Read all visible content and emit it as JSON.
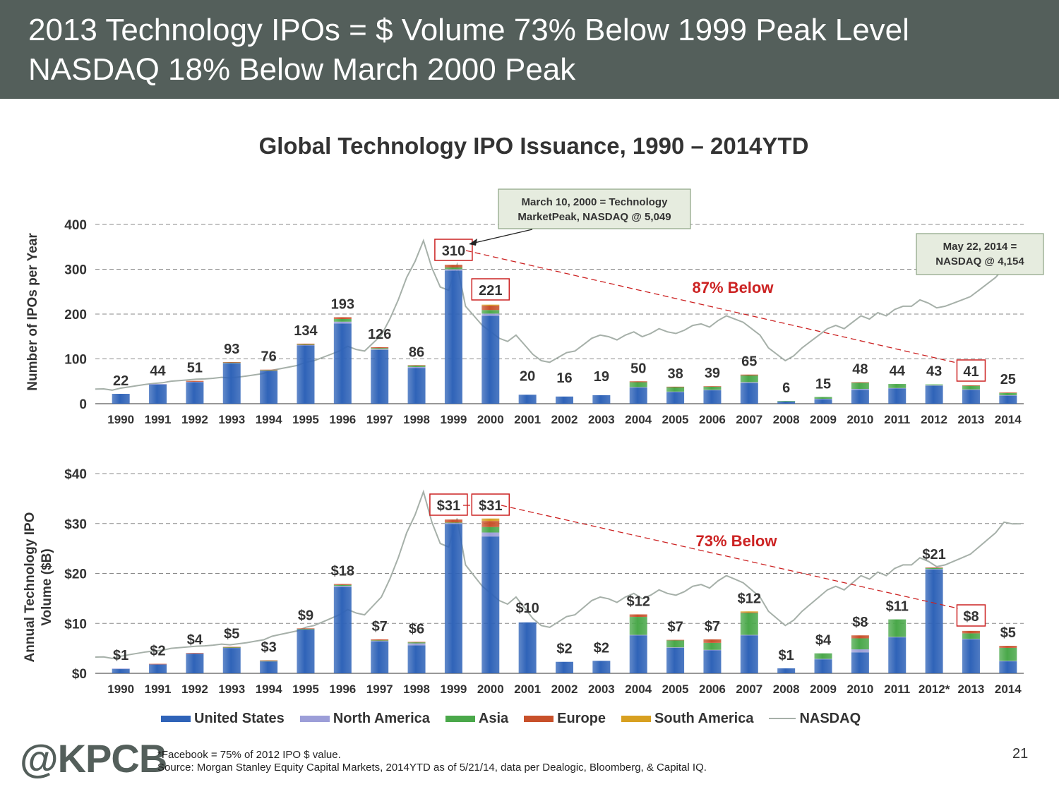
{
  "header": {
    "line1": "2013 Technology IPOs = $ Volume 73% Below 1999 Peak Level",
    "line2": "NASDAQ 18% Below March 2000 Peak"
  },
  "title": "Global Technology IPO Issuance, 1990 – 2014YTD",
  "colors": {
    "header_bg": "#545f5b",
    "united_states": "#2f63b8",
    "north_america": "#9c9ed8",
    "asia": "#4aa84a",
    "europe": "#c8502a",
    "south_america": "#d8a020",
    "nasdaq": "#a6b0a9",
    "highlight_red": "#cc2222"
  },
  "legend": [
    {
      "key": "united_states",
      "label": "United States"
    },
    {
      "key": "north_america",
      "label": "North America"
    },
    {
      "key": "asia",
      "label": "Asia"
    },
    {
      "key": "europe",
      "label": "Europe"
    },
    {
      "key": "south_america",
      "label": "South America"
    },
    {
      "key": "nasdaq",
      "label": "NASDAQ"
    }
  ],
  "chart_data": [
    {
      "type": "bar",
      "stacked": true,
      "ylabel": "Number of IPOs per Year",
      "ylim": [
        0,
        400
      ],
      "yticks": [
        "0",
        "100",
        "200",
        "300",
        "400"
      ],
      "grid": "dashed horizontal",
      "categories": [
        "1990",
        "1991",
        "1992",
        "1993",
        "1994",
        "1995",
        "1996",
        "1997",
        "1998",
        "1999",
        "2000",
        "2001",
        "2002",
        "2003",
        "2004",
        "2005",
        "2006",
        "2007",
        "2008",
        "2009",
        "2010",
        "2011",
        "2012",
        "2013",
        "2014"
      ],
      "totals": [
        22,
        44,
        51,
        93,
        76,
        134,
        193,
        126,
        86,
        310,
        221,
        20,
        16,
        19,
        50,
        38,
        39,
        65,
        6,
        15,
        48,
        44,
        43,
        41,
        25
      ],
      "value_labels": [
        "22",
        "44",
        "51",
        "93",
        "76",
        "134",
        "193",
        "126",
        "86",
        "310",
        "221",
        "20",
        "16",
        "19",
        "50",
        "38",
        "39",
        "65",
        "6",
        "15",
        "48",
        "44",
        "43",
        "41",
        "25"
      ],
      "boxed_labels": [
        "310",
        "221",
        "41"
      ],
      "series": [
        {
          "name": "United States",
          "values": [
            22,
            43,
            48,
            90,
            73,
            130,
            179,
            120,
            80,
            297,
            196,
            20,
            16,
            19,
            36,
            26,
            30,
            46,
            5,
            10,
            31,
            34,
            40,
            31,
            18
          ]
        },
        {
          "name": "North America",
          "values": [
            0,
            1,
            1,
            1,
            1,
            1,
            4,
            2,
            2,
            3,
            5,
            0,
            0,
            0,
            1,
            1,
            1,
            2,
            0,
            1,
            2,
            1,
            1,
            1,
            1
          ]
        },
        {
          "name": "Asia",
          "values": [
            0,
            0,
            0,
            1,
            1,
            1,
            6,
            2,
            3,
            4,
            8,
            0,
            0,
            0,
            11,
            10,
            7,
            15,
            1,
            4,
            14,
            9,
            2,
            8,
            5
          ]
        },
        {
          "name": "Europe",
          "values": [
            0,
            0,
            2,
            1,
            1,
            2,
            4,
            2,
            1,
            6,
            10,
            0,
            0,
            0,
            2,
            1,
            1,
            2,
            0,
            0,
            1,
            0,
            0,
            1,
            1
          ]
        },
        {
          "name": "South America",
          "values": [
            0,
            0,
            0,
            0,
            0,
            0,
            0,
            0,
            0,
            0,
            2,
            0,
            0,
            0,
            0,
            0,
            0,
            0,
            0,
            0,
            0,
            0,
            0,
            0,
            0
          ]
        }
      ],
      "annotations": [
        {
          "text": "March 10, 2000 = Technology Market Peak, NASDAQ @ 5,049"
        },
        {
          "text": "May 22, 2014 = NASDAQ @ 4,154"
        },
        {
          "text": "87% Below"
        }
      ]
    },
    {
      "type": "bar",
      "stacked": true,
      "ylabel": "Annual Technology IPO Volume ($B)",
      "ylim": [
        0,
        40
      ],
      "yticks": [
        "$0",
        "$10",
        "$20",
        "$30",
        "$40"
      ],
      "grid": "dashed horizontal",
      "categories": [
        "1990",
        "1991",
        "1992",
        "1993",
        "1994",
        "1995",
        "1996",
        "1997",
        "1998",
        "1999",
        "2000",
        "2001",
        "2002",
        "2003",
        "2004",
        "2005",
        "2006",
        "2007",
        "2008",
        "2009",
        "2010",
        "2011",
        "2012*",
        "2013",
        "2014"
      ],
      "totals": [
        1,
        1.9,
        4.1,
        5.3,
        2.6,
        9,
        17.9,
        6.8,
        6.3,
        30.8,
        31,
        10.2,
        2.3,
        2.5,
        11.8,
        6.7,
        6.8,
        12.4,
        1,
        4,
        7.6,
        10.8,
        21.2,
        8.5,
        5.5
      ],
      "value_labels": [
        "$1",
        "$2",
        "$4",
        "$5",
        "$3",
        "$9",
        "$18",
        "$7",
        "$6",
        "$31",
        "$31",
        "$10",
        "$2",
        "$2",
        "$12",
        "$7",
        "$7",
        "$12",
        "$1",
        "$4",
        "$8",
        "$11",
        "$21",
        "$8",
        "$5"
      ],
      "boxed_labels": [
        "$31",
        "$31",
        "$8"
      ],
      "series": [
        {
          "name": "United States",
          "values": [
            0.9,
            1.8,
            3.9,
            5.1,
            2.4,
            8.8,
            17.3,
            6.4,
            5.6,
            29.9,
            27.4,
            10.2,
            2.3,
            2.5,
            7.6,
            5.1,
            4.6,
            7.6,
            1,
            2.8,
            4.2,
            7.2,
            20.8,
            6.8,
            2.4
          ]
        },
        {
          "name": "North America",
          "values": [
            0.05,
            0.05,
            0.1,
            0.05,
            0.05,
            0.05,
            0.2,
            0.1,
            0.4,
            0.2,
            0.8,
            0,
            0,
            0,
            0.1,
            0.1,
            0.1,
            0.1,
            0,
            0.1,
            0.6,
            0.1,
            0.1,
            0.1,
            0.1
          ]
        },
        {
          "name": "Asia",
          "values": [
            0,
            0,
            0,
            0.05,
            0.05,
            0.05,
            0.2,
            0.1,
            0.2,
            0.1,
            1.1,
            0,
            0,
            0,
            3.6,
            1.4,
            1.4,
            4.4,
            0,
            1.1,
            2.2,
            3.5,
            0.2,
            1.1,
            2.6
          ]
        },
        {
          "name": "Europe",
          "values": [
            0,
            0.05,
            0.1,
            0.1,
            0.1,
            0.1,
            0.2,
            0.2,
            0.1,
            0.6,
            1.2,
            0,
            0,
            0,
            0.5,
            0.1,
            0.7,
            0.1,
            0,
            0,
            0.6,
            0,
            0.1,
            0.5,
            0.4
          ]
        },
        {
          "name": "South America",
          "values": [
            0,
            0,
            0,
            0,
            0,
            0,
            0,
            0,
            0,
            0,
            0.5,
            0,
            0,
            0,
            0,
            0,
            0,
            0.2,
            0,
            0,
            0,
            0,
            0,
            0,
            0
          ]
        }
      ],
      "annotations": [
        {
          "text": "73% Below"
        }
      ]
    }
  ],
  "nasdaq_series": {
    "name": "NASDAQ",
    "values": [
      415,
      420,
      380,
      440,
      480,
      520,
      560,
      590,
      610,
      660,
      680,
      700,
      720,
      730,
      750,
      780,
      760,
      790,
      820,
      860,
      900,
      1000,
      1050,
      1100,
      1150,
      1250,
      1300,
      1400,
      1500,
      1600,
      1750,
      1650,
      1600,
      1850,
      2100,
      2600,
      3200,
      3900,
      4400,
      5049,
      4200,
      3600,
      3500,
      4300,
      3000,
      2700,
      2400,
      2200,
      2000,
      1900,
      2100,
      1800,
      1500,
      1300,
      1250,
      1400,
      1550,
      1600,
      1800,
      2000,
      2100,
      2050,
      1950,
      2100,
      2200,
      2050,
      2150,
      2300,
      2200,
      2150,
      2250,
      2400,
      2450,
      2350,
      2550,
      2700,
      2600,
      2500,
      2300,
      2100,
      1700,
      1500,
      1300,
      1450,
      1700,
      1900,
      2100,
      2300,
      2400,
      2300,
      2500,
      2700,
      2600,
      2800,
      2700,
      2900,
      3000,
      3000,
      3200,
      3100,
      2950,
      3000,
      3100,
      3200,
      3300,
      3500,
      3700,
      3900,
      4200,
      4150,
      4154
    ]
  },
  "footer": {
    "logo": "@KPCB",
    "footnote1": "*Facebook = 75% of 2012 IPO $ value.",
    "footnote2": "Source: Morgan Stanley Equity Capital Markets, 2014YTD as of 5/21/14, data per Dealogic, Bloomberg, & Capital IQ.",
    "page_number": "21"
  }
}
